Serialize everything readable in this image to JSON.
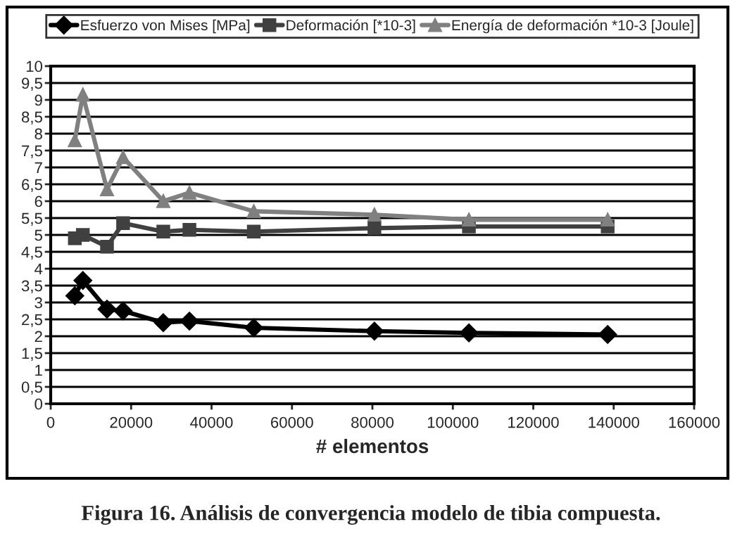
{
  "chart_data": {
    "type": "line",
    "xlabel": "# elementos",
    "x": [
      6000,
      8000,
      14000,
      18000,
      28000,
      34500,
      50500,
      80500,
      104000,
      138500
    ],
    "series": [
      {
        "name": "Esfuerzo von Mises [MPa]",
        "color": "#000000",
        "marker": "diamond",
        "values": [
          3.2,
          3.65,
          2.8,
          2.75,
          2.4,
          2.45,
          2.25,
          2.15,
          2.1,
          2.05
        ]
      },
      {
        "name": "Deformación [*10-3]",
        "color": "#404040",
        "marker": "square",
        "values": [
          4.9,
          5.0,
          4.65,
          5.35,
          5.1,
          5.15,
          5.1,
          5.2,
          5.25,
          5.25
        ]
      },
      {
        "name": "Energía de deformación *10-3 [Joule]",
        "color": "#808080",
        "marker": "triangle",
        "values": [
          7.8,
          9.15,
          6.35,
          7.3,
          6.0,
          6.25,
          5.7,
          5.6,
          5.45,
          5.45
        ]
      }
    ],
    "xlim": [
      0,
      160000
    ],
    "xticks": [
      0,
      20000,
      40000,
      60000,
      80000,
      100000,
      120000,
      140000,
      160000
    ],
    "ylim": [
      0,
      10
    ],
    "yticks": [
      0,
      {
        "value": 0.5,
        "label": "0,5"
      },
      1,
      {
        "value": 1.5,
        "label": "1,5"
      },
      2,
      {
        "value": 2.5,
        "label": "2,5"
      },
      3,
      {
        "value": 3.5,
        "label": "3,5"
      },
      4,
      {
        "value": 4.5,
        "label": "4,5"
      },
      5,
      {
        "value": 5.5,
        "label": "5,5"
      },
      6,
      {
        "value": 6.5,
        "label": "6,5"
      },
      7,
      {
        "value": 7.5,
        "label": "7,5"
      },
      8,
      {
        "value": 8.5,
        "label": "8,5"
      },
      9,
      {
        "value": 9.5,
        "label": "9,5"
      },
      10
    ],
    "grid": "y",
    "legend": "top",
    "line_style": "solid",
    "annotations": [
      "Figura 16. Análisis de convergencia modelo de tibia compuesta."
    ]
  }
}
